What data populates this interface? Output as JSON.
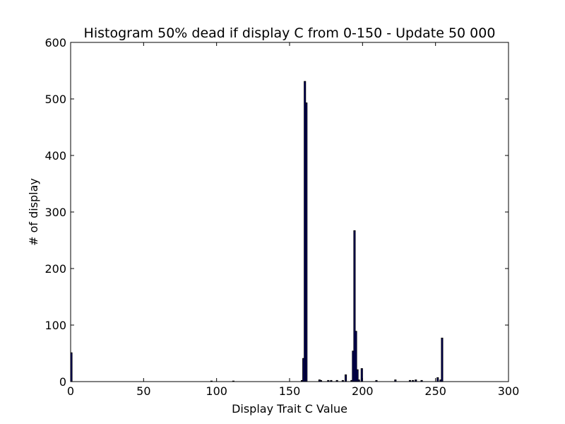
{
  "chart_data": {
    "type": "bar",
    "title": "Histogram 50% dead if display C from 0-150 - Update 50 000",
    "xlabel": "Display Trait C Value",
    "ylabel": "# of display",
    "xlim": [
      0,
      300
    ],
    "ylim": [
      0,
      600
    ],
    "xticks": [
      0,
      50,
      100,
      150,
      200,
      250,
      300
    ],
    "yticks": [
      0,
      100,
      200,
      300,
      400,
      500,
      600
    ],
    "grid": false,
    "legend": "none",
    "bar_width": 1,
    "bars": [
      {
        "x": 0,
        "y": 51
      },
      {
        "x": 96,
        "y": 1
      },
      {
        "x": 111,
        "y": 1
      },
      {
        "x": 158,
        "y": 2
      },
      {
        "x": 159,
        "y": 41
      },
      {
        "x": 160,
        "y": 531
      },
      {
        "x": 161,
        "y": 493
      },
      {
        "x": 170,
        "y": 3
      },
      {
        "x": 171,
        "y": 2
      },
      {
        "x": 176,
        "y": 2
      },
      {
        "x": 178,
        "y": 2
      },
      {
        "x": 182,
        "y": 2
      },
      {
        "x": 186,
        "y": 2
      },
      {
        "x": 188,
        "y": 12
      },
      {
        "x": 192,
        "y": 2
      },
      {
        "x": 193,
        "y": 54
      },
      {
        "x": 194,
        "y": 267
      },
      {
        "x": 195,
        "y": 89
      },
      {
        "x": 196,
        "y": 21
      },
      {
        "x": 197,
        "y": 3
      },
      {
        "x": 199,
        "y": 23
      },
      {
        "x": 209,
        "y": 2
      },
      {
        "x": 222,
        "y": 3
      },
      {
        "x": 232,
        "y": 2
      },
      {
        "x": 234,
        "y": 2
      },
      {
        "x": 236,
        "y": 3
      },
      {
        "x": 240,
        "y": 2
      },
      {
        "x": 251,
        "y": 7
      },
      {
        "x": 253,
        "y": 3
      },
      {
        "x": 254,
        "y": 77
      }
    ],
    "colors": {
      "bar_fill": "#000080",
      "bar_edge": "#000000",
      "axes": "#000000",
      "background": "#ffffff"
    }
  }
}
